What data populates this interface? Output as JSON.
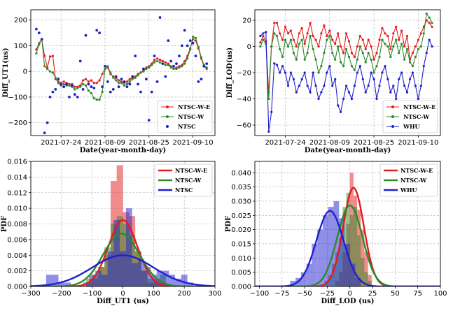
{
  "chart_data": [
    {
      "type": "line",
      "xlabel": "Date(year-month-day)",
      "ylabel": "Diff_UT1(us)",
      "xlim": [
        "2021-07-13",
        "2021-09-18"
      ],
      "ylim": [
        -250,
        240
      ],
      "xticks": [
        "2021-07-24",
        "2021-08-09",
        "2021-08-25",
        "2021-09-10"
      ],
      "yticks": [
        -200,
        -100,
        0,
        100,
        200
      ],
      "grid": true,
      "legend_position": "lower-right",
      "x": [
        "2021-07-15",
        "2021-07-16",
        "2021-07-17",
        "2021-07-18",
        "2021-07-19",
        "2021-07-20",
        "2021-07-21",
        "2021-07-22",
        "2021-07-23",
        "2021-07-24",
        "2021-07-25",
        "2021-07-26",
        "2021-07-27",
        "2021-07-28",
        "2021-07-29",
        "2021-07-30",
        "2021-07-31",
        "2021-08-01",
        "2021-08-02",
        "2021-08-03",
        "2021-08-04",
        "2021-08-05",
        "2021-08-06",
        "2021-08-07",
        "2021-08-08",
        "2021-08-09",
        "2021-08-10",
        "2021-08-11",
        "2021-08-12",
        "2021-08-13",
        "2021-08-14",
        "2021-08-15",
        "2021-08-16",
        "2021-08-17",
        "2021-08-18",
        "2021-08-19",
        "2021-08-20",
        "2021-08-21",
        "2021-08-22",
        "2021-08-23",
        "2021-08-24",
        "2021-08-25",
        "2021-08-26",
        "2021-08-27",
        "2021-08-28",
        "2021-08-29",
        "2021-08-30",
        "2021-08-31",
        "2021-09-01",
        "2021-09-02",
        "2021-09-03",
        "2021-09-04",
        "2021-09-05",
        "2021-09-06",
        "2021-09-07",
        "2021-09-08",
        "2021-09-09",
        "2021-09-10",
        "2021-09-11",
        "2021-09-12",
        "2021-09-13",
        "2021-09-14",
        "2021-09-15"
      ],
      "series": [
        {
          "name": "NTSC-W-E",
          "color": "#e41a1c",
          "style": "line-dot",
          "values": [
            85,
            110,
            125,
            60,
            15,
            58,
            60,
            -30,
            -40,
            -45,
            -40,
            -45,
            -50,
            -50,
            -60,
            -60,
            -55,
            -35,
            -30,
            -40,
            -35,
            -45,
            -45,
            -35,
            -10,
            10,
            15,
            -10,
            -20,
            -25,
            -35,
            -40,
            -45,
            -40,
            -30,
            -25,
            -20,
            -10,
            -5,
            5,
            15,
            20,
            30,
            45,
            50,
            45,
            40,
            35,
            30,
            20,
            10,
            15,
            20,
            25,
            40,
            60,
            90,
            125,
            120,
            90,
            50,
            20,
            10
          ]
        },
        {
          "name": "NTSC-W",
          "color": "#2a8a2a",
          "style": "line-dot",
          "values": [
            70,
            105,
            125,
            20,
            10,
            0,
            -5,
            -25,
            -45,
            -55,
            -50,
            -55,
            -55,
            -60,
            -70,
            -65,
            -60,
            -50,
            -55,
            -75,
            -85,
            -105,
            -110,
            -110,
            -80,
            10,
            20,
            -5,
            -25,
            -35,
            -45,
            -45,
            -55,
            -50,
            -40,
            -30,
            -25,
            -15,
            -5,
            0,
            10,
            15,
            25,
            35,
            40,
            35,
            30,
            25,
            25,
            15,
            10,
            10,
            15,
            20,
            30,
            50,
            85,
            135,
            130,
            95,
            55,
            25,
            15
          ]
        },
        {
          "name": "NTSC",
          "color": "#1f1fd0",
          "style": "points",
          "values": [
            165,
            150,
            125,
            -240,
            -200,
            -100,
            -80,
            -70,
            -30,
            -50,
            -60,
            -50,
            -100,
            -55,
            -90,
            -100,
            40,
            -70,
            140,
            -50,
            -60,
            -65,
            160,
            150,
            -60,
            20,
            -40,
            -80,
            -70,
            -20,
            -60,
            -30,
            -40,
            -60,
            -50,
            -20,
            60,
            -50,
            -80,
            10,
            -30,
            -190,
            -80,
            60,
            -40,
            210,
            30,
            -20,
            120,
            40,
            20,
            30,
            60,
            100,
            160,
            100,
            120,
            110,
            60,
            -40,
            -30,
            20,
            30
          ]
        }
      ]
    },
    {
      "type": "line",
      "xlabel": "Date(year-month-day)",
      "ylabel": "Diff_LOD(us)",
      "xlim": [
        "2021-07-13",
        "2021-09-18"
      ],
      "ylim": [
        -68,
        28
      ],
      "xticks": [
        "2021-07-24",
        "2021-08-09",
        "2021-08-25",
        "2021-09-10"
      ],
      "yticks": [
        -60,
        -40,
        -20,
        0,
        20
      ],
      "grid": true,
      "legend_position": "lower-right",
      "x": [
        "2021-07-15",
        "2021-07-16",
        "2021-07-17",
        "2021-07-18",
        "2021-07-19",
        "2021-07-20",
        "2021-07-21",
        "2021-07-22",
        "2021-07-23",
        "2021-07-24",
        "2021-07-25",
        "2021-07-26",
        "2021-07-27",
        "2021-07-28",
        "2021-07-29",
        "2021-07-30",
        "2021-07-31",
        "2021-08-01",
        "2021-08-02",
        "2021-08-03",
        "2021-08-04",
        "2021-08-05",
        "2021-08-06",
        "2021-08-07",
        "2021-08-08",
        "2021-08-09",
        "2021-08-10",
        "2021-08-11",
        "2021-08-12",
        "2021-08-13",
        "2021-08-14",
        "2021-08-15",
        "2021-08-16",
        "2021-08-17",
        "2021-08-18",
        "2021-08-19",
        "2021-08-20",
        "2021-08-21",
        "2021-08-22",
        "2021-08-23",
        "2021-08-24",
        "2021-08-25",
        "2021-08-26",
        "2021-08-27",
        "2021-08-28",
        "2021-08-29",
        "2021-08-30",
        "2021-08-31",
        "2021-09-01",
        "2021-09-02",
        "2021-09-03",
        "2021-09-04",
        "2021-09-05",
        "2021-09-06",
        "2021-09-07",
        "2021-09-08",
        "2021-09-09",
        "2021-09-10",
        "2021-09-11",
        "2021-09-12",
        "2021-09-13",
        "2021-09-14",
        "2021-09-15"
      ],
      "series": [
        {
          "name": "NTSC-W-E",
          "color": "#e41a1c",
          "style": "line-dot",
          "values": [
            3,
            8,
            4,
            -35,
            0,
            18,
            18,
            10,
            5,
            15,
            10,
            12,
            5,
            0,
            10,
            14,
            2,
            10,
            18,
            8,
            5,
            0,
            10,
            16,
            8,
            12,
            5,
            2,
            10,
            0,
            -5,
            10,
            4,
            -5,
            -8,
            0,
            8,
            5,
            -2,
            5,
            0,
            -10,
            -5,
            5,
            14,
            10,
            8,
            -2,
            10,
            15,
            5,
            12,
            0,
            8,
            -10,
            -5,
            0,
            5,
            10,
            15,
            20,
            18,
            15
          ]
        },
        {
          "name": "NTSC-W",
          "color": "#2a8a2a",
          "style": "line-dot",
          "values": [
            0,
            5,
            2,
            -40,
            0,
            10,
            8,
            -2,
            -8,
            5,
            0,
            5,
            -5,
            -10,
            2,
            5,
            -10,
            -5,
            8,
            -2,
            -10,
            -20,
            -15,
            -5,
            5,
            8,
            -5,
            -10,
            0,
            -12,
            -15,
            -2,
            -8,
            -15,
            -18,
            -10,
            0,
            -5,
            -12,
            -5,
            -10,
            -20,
            -15,
            -8,
            5,
            2,
            0,
            -8,
            0,
            5,
            -5,
            2,
            -10,
            -2,
            -12,
            -15,
            -8,
            -2,
            0,
            10,
            25,
            22,
            18
          ]
        },
        {
          "name": "WHU",
          "color": "#1f1fd0",
          "style": "line-dot",
          "values": [
            8,
            10,
            11,
            -65,
            -50,
            -13,
            -14,
            -20,
            -15,
            -20,
            -30,
            -20,
            -25,
            -35,
            -30,
            -25,
            -20,
            -30,
            -35,
            -20,
            -30,
            -40,
            -35,
            -30,
            -20,
            -15,
            -30,
            -25,
            -45,
            -50,
            -40,
            -30,
            -35,
            -40,
            -30,
            -20,
            -15,
            -25,
            -35,
            -30,
            -20,
            -25,
            -40,
            -30,
            -20,
            -15,
            -25,
            -35,
            -30,
            -40,
            -25,
            -20,
            -30,
            -35,
            -25,
            -20,
            -30,
            -40,
            -30,
            -15,
            -5,
            5,
            0
          ]
        }
      ]
    },
    {
      "type": "histogram",
      "xlabel": "Diff_UT1 (us)",
      "ylabel": "PDF",
      "xlim": [
        -300,
        300
      ],
      "ylim": [
        0,
        0.016
      ],
      "xticks": [
        -300,
        -200,
        -100,
        0,
        100,
        200,
        300
      ],
      "yticks": [
        0.0,
        0.002,
        0.004,
        0.006,
        0.008,
        0.01,
        0.012,
        0.014,
        0.016
      ],
      "ytick_labels": [
        "0.000",
        "0.002",
        "0.004",
        "0.006",
        "0.008",
        "0.010",
        "0.012",
        "0.014",
        "0.016"
      ],
      "grid": true,
      "legend_position": "top-right",
      "series": [
        {
          "name": "NTSC-W-E",
          "color": "#e41a1c",
          "mean": 0,
          "std": 47,
          "bin_edges": [
            -120,
            -100,
            -80,
            -60,
            -40,
            -20,
            0,
            20,
            40,
            60,
            80,
            100,
            120,
            140
          ],
          "densities": [
            0.0005,
            0.001,
            0.0025,
            0.004,
            0.0135,
            0.0155,
            0.0095,
            0.009,
            0.0045,
            0.002,
            0.0005,
            0.001,
            0.0005
          ]
        },
        {
          "name": "NTSC-W",
          "color": "#2a8a2a",
          "mean": -5,
          "std": 59,
          "bin_edges": [
            -120,
            -100,
            -80,
            -60,
            -40,
            -20,
            0,
            20,
            40,
            60,
            80,
            100,
            120,
            140
          ],
          "densities": [
            0.001,
            0.0015,
            0.0025,
            0.005,
            0.008,
            0.009,
            0.008,
            0.0065,
            0.0045,
            0.002,
            0.001,
            0.0005,
            0.0015
          ]
        },
        {
          "name": "NTSC",
          "color": "#1f1fd0",
          "mean": 0,
          "std": 100,
          "bin_edges": [
            -250,
            -230,
            -210,
            -190,
            -170,
            -150,
            -130,
            -110,
            -90,
            -70,
            -50,
            -30,
            -10,
            10,
            30,
            50,
            70,
            90,
            110,
            130,
            150,
            170,
            190,
            210,
            230
          ],
          "densities": [
            0.0015,
            0.0015,
            0.0005,
            0.0005,
            0,
            0,
            0.0005,
            0.0015,
            0.002,
            0.0015,
            0.0045,
            0.0085,
            0.0045,
            0.01,
            0.003,
            0.0035,
            0.0025,
            0.0015,
            0.002,
            0.002,
            0.0015,
            0.001,
            0.0015,
            0.0005
          ]
        }
      ]
    },
    {
      "type": "histogram",
      "xlabel": "Diff_LOD (us)",
      "ylabel": "PDF",
      "xlim": [
        -105,
        100
      ],
      "ylim": [
        0,
        0.044
      ],
      "xticks": [
        -100,
        -75,
        -50,
        -25,
        0,
        25,
        50,
        75,
        100
      ],
      "yticks": [
        0.0,
        0.005,
        0.01,
        0.015,
        0.02,
        0.025,
        0.03,
        0.035,
        0.04
      ],
      "ytick_labels": [
        "0.000",
        "0.005",
        "0.010",
        "0.015",
        "0.020",
        "0.025",
        "0.030",
        "0.035",
        "0.040"
      ],
      "grid": true,
      "legend_position": "top-right",
      "series": [
        {
          "name": "NTSC-W-E",
          "color": "#e41a1c",
          "mean": 4,
          "std": 11.5,
          "bin_edges": [
            -16,
            -12,
            -8,
            -4,
            0,
            4,
            8,
            12,
            16,
            20,
            24
          ],
          "densities": [
            0.002,
            0.005,
            0.012,
            0.022,
            0.04,
            0.032,
            0.027,
            0.02,
            0.012,
            0.004
          ]
        },
        {
          "name": "NTSC-W",
          "color": "#2a8a2a",
          "mean": 0,
          "std": 14,
          "bin_edges": [
            -28,
            -24,
            -20,
            -16,
            -12,
            -8,
            -4,
            0,
            4,
            8,
            12,
            16,
            20,
            24
          ],
          "densities": [
            0.002,
            0.004,
            0.008,
            0.012,
            0.017,
            0.028,
            0.033,
            0.025,
            0.028,
            0.018,
            0.01,
            0.005,
            0.002
          ]
        },
        {
          "name": "WHU",
          "color": "#1f1fd0",
          "mean": -22,
          "std": 15,
          "bin_edges": [
            -66,
            -60,
            -54,
            -48,
            -42,
            -36,
            -30,
            -24,
            -18,
            -12,
            -6,
            0,
            6,
            12
          ],
          "densities": [
            0.002,
            0.003,
            0.005,
            0.008,
            0.015,
            0.02,
            0.025,
            0.028,
            0.03,
            0.024,
            0.015,
            0.008,
            0.003
          ]
        }
      ]
    }
  ]
}
